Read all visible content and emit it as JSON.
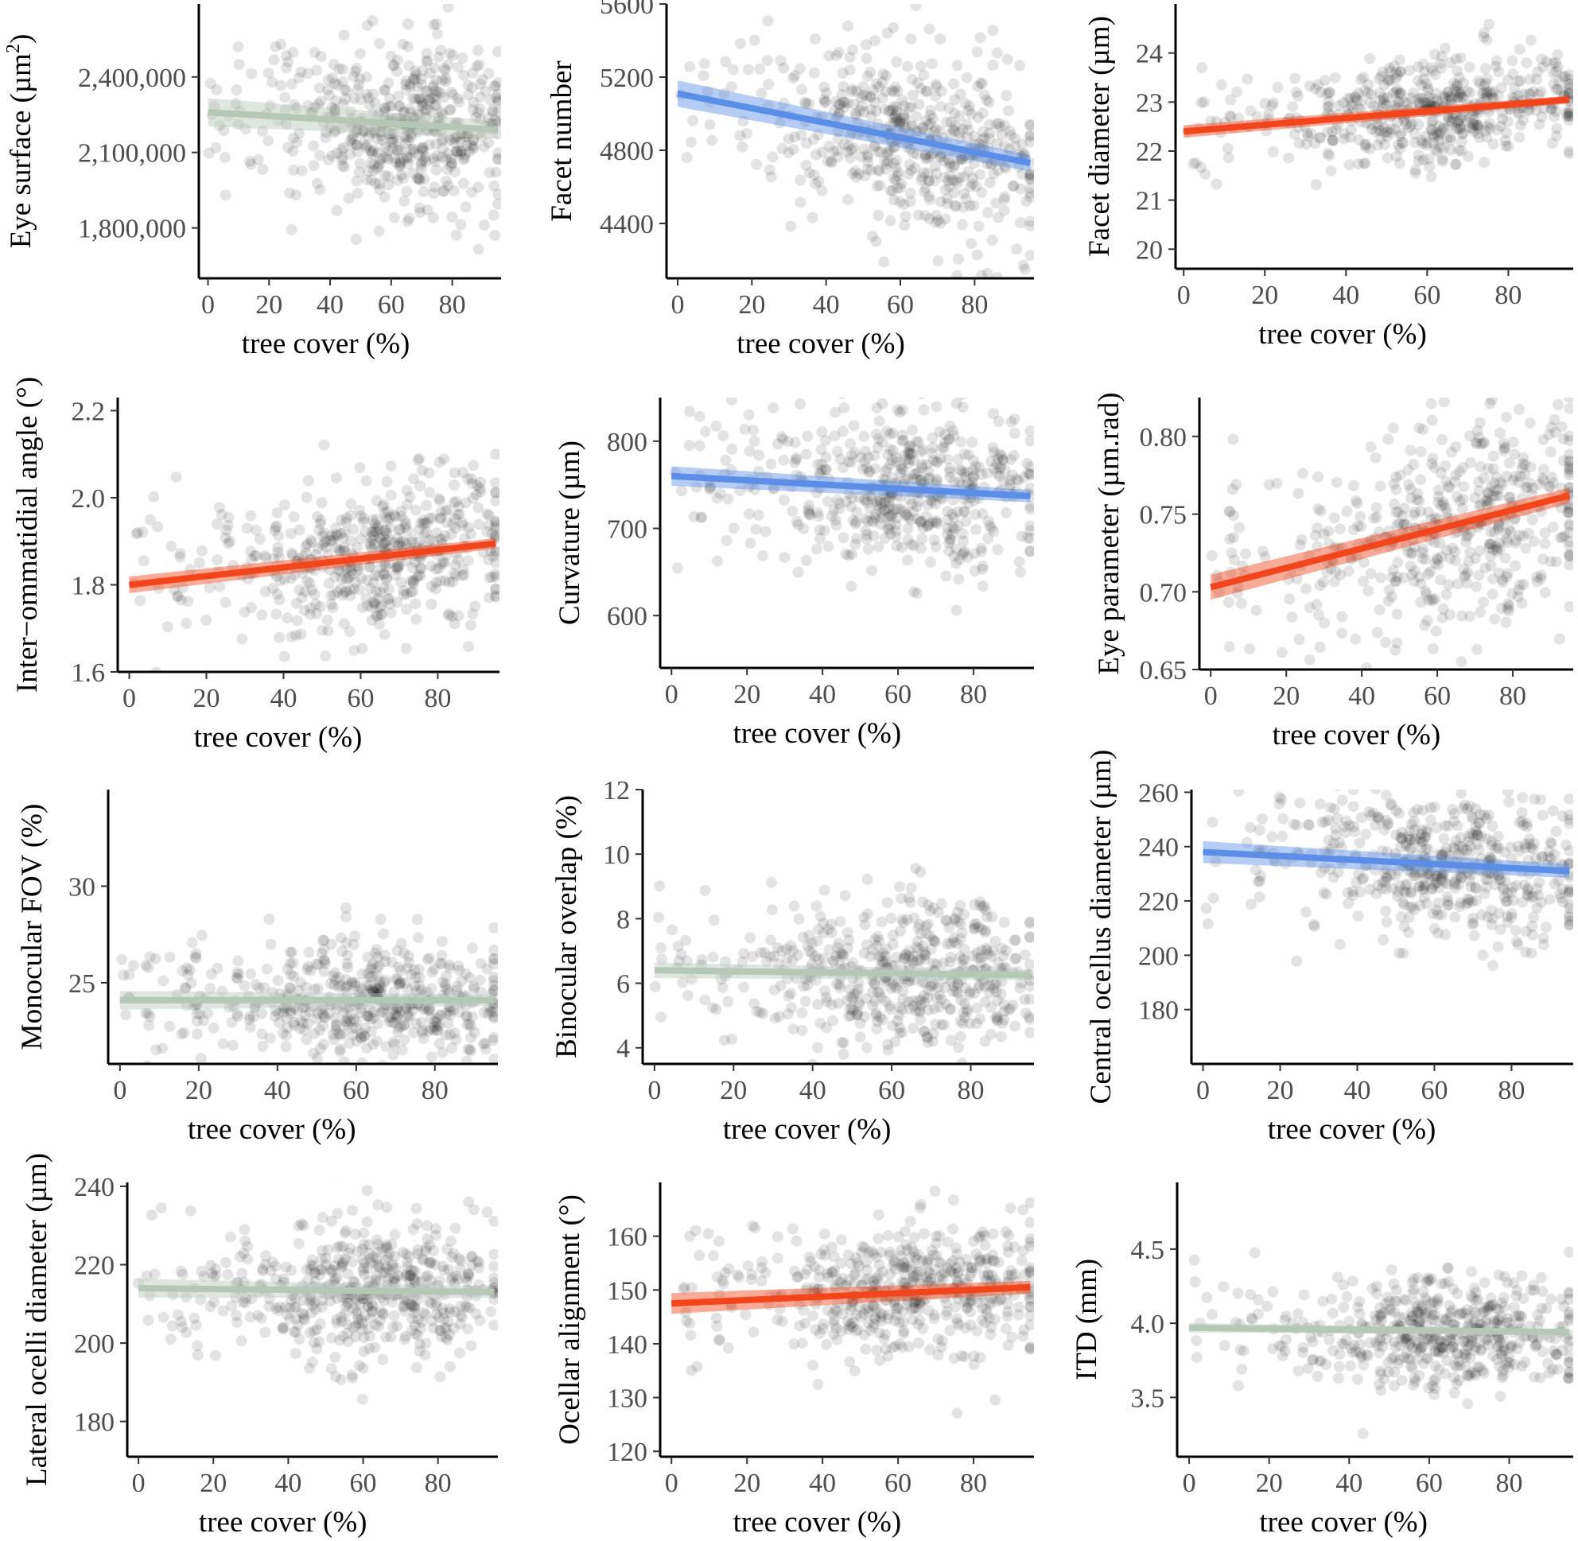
{
  "palette": {
    "decrease": "#5b8ee6",
    "increase": "#f2451b",
    "not_significant": "#b5c8b8",
    "points": "#000000"
  },
  "chart_data": [
    {
      "type": "scatter",
      "xlabel": "tree cover (%)",
      "ylabel": [
        "Eye surface (µm",
        "2",
        ")"
      ],
      "xlim": [
        -3,
        96
      ],
      "ylim": [
        1600000,
        2690000
      ],
      "xticks": [
        0,
        20,
        40,
        60,
        80
      ],
      "yticks": [
        1800000,
        2100000,
        2400000
      ],
      "ytick_labels": [
        "1,800,000",
        "2,100,000",
        "2,400,000"
      ],
      "trend": {
        "y0": 2260000,
        "y95": 2190000,
        "ci": 35000,
        "color": "not_significant"
      },
      "scatter": {
        "center": 2215000,
        "sd": 170000,
        "seed": 11
      }
    },
    {
      "type": "scatter",
      "xlabel": "tree cover (%)",
      "ylabel": "Facet number",
      "xlim": [
        -3,
        96
      ],
      "ylim": [
        4100,
        5600
      ],
      "xticks": [
        0,
        20,
        40,
        60,
        80
      ],
      "yticks": [
        4400,
        4800,
        5200,
        5600
      ],
      "trend": {
        "y0": 5110,
        "y95": 4730,
        "ci": 45,
        "color": "decrease"
      },
      "scatter": {
        "center": 4900,
        "sd": 240,
        "seed": 23
      }
    },
    {
      "type": "scatter",
      "xlabel": "tree cover (%)",
      "ylabel": "Facet diameter (µm)",
      "xlim": [
        -2,
        96
      ],
      "ylim": [
        19.6,
        25.0
      ],
      "xticks": [
        0,
        20,
        40,
        60,
        80
      ],
      "yticks": [
        20,
        21,
        22,
        23,
        24
      ],
      "trend": {
        "y0": 22.4,
        "y95": 23.05,
        "ci": 0.08,
        "color": "increase"
      },
      "scatter": {
        "center": 22.85,
        "sd": 0.55,
        "seed": 37
      }
    },
    {
      "type": "scatter",
      "xlabel": "tree cover (%)",
      "ylabel": "Inter−ommatidial angle (°)",
      "xlim": [
        -3,
        96
      ],
      "ylim": [
        1.6,
        2.23
      ],
      "xticks": [
        0,
        20,
        40,
        60,
        80
      ],
      "yticks": [
        1.6,
        1.8,
        2.0,
        2.2
      ],
      "ytick_labels": [
        "1.6",
        "1.8",
        "2.0",
        "2.2"
      ],
      "trend": {
        "y0": 1.8,
        "y95": 1.895,
        "ci": 0.012,
        "color": "increase"
      },
      "scatter": {
        "center": 1.84,
        "sd": 0.09,
        "seed": 41
      }
    },
    {
      "type": "scatter",
      "xlabel": "tree cover (%)",
      "ylabel": "Curvature (µm)",
      "xlim": [
        -3,
        96
      ],
      "ylim": [
        540,
        850
      ],
      "xticks": [
        0,
        20,
        40,
        60,
        80
      ],
      "yticks": [
        600,
        700,
        800
      ],
      "trend": {
        "y0": 760,
        "y95": 737,
        "ci": 7,
        "color": "decrease"
      },
      "scatter": {
        "center": 745,
        "sd": 45,
        "seed": 53
      }
    },
    {
      "type": "scatter",
      "xlabel": "tree cover (%)",
      "ylabel": "Eye parameter (µm.rad)",
      "xlim": [
        -3,
        96
      ],
      "ylim": [
        0.65,
        0.825
      ],
      "xticks": [
        0,
        20,
        40,
        60,
        80
      ],
      "yticks": [
        0.65,
        0.7,
        0.75,
        0.8
      ],
      "ytick_labels": [
        "0.65",
        "0.70",
        "0.75",
        "0.80"
      ],
      "trend": {
        "y0": 0.703,
        "y95": 0.762,
        "ci": 0.005,
        "color": "increase"
      },
      "scatter": {
        "center": 0.735,
        "sd": 0.035,
        "seed": 67
      }
    },
    {
      "type": "scatter",
      "xlabel": "tree cover (%)",
      "ylabel": "Monocular FOV (%)",
      "xlim": [
        -3,
        96
      ],
      "ylim": [
        20.8,
        35.0
      ],
      "xticks": [
        0,
        20,
        40,
        60,
        80
      ],
      "yticks": [
        25,
        30
      ],
      "trend": {
        "y0": 24.1,
        "y95": 24.1,
        "ci": 0.3,
        "color": "not_significant"
      },
      "scatter": {
        "center": 24.3,
        "sd": 1.6,
        "seed": 71
      }
    },
    {
      "type": "scatter",
      "xlabel": "tree cover (%)",
      "ylabel": "Binocular overlap (%)",
      "xlim": [
        -3,
        96
      ],
      "ylim": [
        3.5,
        12.0
      ],
      "xticks": [
        0,
        20,
        40,
        60,
        80
      ],
      "yticks": [
        4,
        6,
        8,
        10,
        12
      ],
      "trend": {
        "y0": 6.4,
        "y95": 6.25,
        "ci": 0.15,
        "color": "not_significant"
      },
      "scatter": {
        "center": 6.3,
        "sd": 1.1,
        "seed": 83
      }
    },
    {
      "type": "scatter",
      "xlabel": "tree cover (%)",
      "ylabel": "Central ocellus diameter (µm)",
      "xlim": [
        -3,
        96
      ],
      "ylim": [
        160,
        261
      ],
      "xticks": [
        0,
        20,
        40,
        60,
        80
      ],
      "yticks": [
        180,
        200,
        220,
        240,
        260
      ],
      "trend": {
        "y0": 238,
        "y95": 231,
        "ci": 2.5,
        "color": "decrease"
      },
      "scatter": {
        "center": 234,
        "sd": 13,
        "seed": 97
      }
    },
    {
      "type": "scatter",
      "xlabel": "tree cover (%)",
      "ylabel": "Lateral ocelli diameter (µm)",
      "xlim": [
        -3,
        96
      ],
      "ylim": [
        171,
        241
      ],
      "xticks": [
        0,
        20,
        40,
        60,
        80
      ],
      "yticks": [
        180,
        200,
        220,
        240
      ],
      "trend": {
        "y0": 214,
        "y95": 213,
        "ci": 1.5,
        "color": "not_significant"
      },
      "scatter": {
        "center": 213,
        "sd": 9,
        "seed": 101
      }
    },
    {
      "type": "scatter",
      "xlabel": "tree cover (%)",
      "ylabel": "Ocellar alignment (°)",
      "xlim": [
        -3,
        96
      ],
      "ylim": [
        119,
        170
      ],
      "xticks": [
        0,
        20,
        40,
        60,
        80
      ],
      "yticks": [
        120,
        130,
        140,
        150,
        160
      ],
      "trend": {
        "y0": 147.5,
        "y95": 150.5,
        "ci": 1.2,
        "color": "increase"
      },
      "scatter": {
        "center": 148.5,
        "sd": 6.5,
        "seed": 113
      }
    },
    {
      "type": "scatter",
      "xlabel": "tree cover (%)",
      "ylabel": "ITD (mm)",
      "xlim": [
        -3,
        96
      ],
      "ylim": [
        3.1,
        4.95
      ],
      "xticks": [
        0,
        20,
        40,
        60,
        80
      ],
      "yticks": [
        3.5,
        4.0,
        4.5
      ],
      "ytick_labels": [
        "3.5",
        "4.0",
        "4.5"
      ],
      "trend": {
        "y0": 3.97,
        "y95": 3.94,
        "ci": 0.02,
        "color": "not_significant"
      },
      "scatter": {
        "center": 3.96,
        "sd": 0.18,
        "seed": 127
      }
    }
  ]
}
